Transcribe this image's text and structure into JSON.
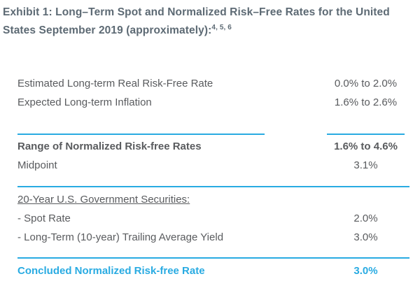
{
  "title": {
    "line1": "Exhibit 1: Long–Term Spot and Normalized Risk–Free Rates for the United",
    "line2": "States September 2019 (approximately):",
    "footnote_refs": "4, 5, 6"
  },
  "colors": {
    "accent": "#29abe2",
    "title_text": "#5d6a74",
    "body_text": "#595b5e"
  },
  "table": {
    "rows": [
      {
        "label": "Estimated Long-term Real Risk-Free Rate",
        "value": "0.0% to 2.0%"
      },
      {
        "label": "Expected Long-term Inflation",
        "value": "1.6% to 2.6%"
      },
      {
        "label": "Range of Normalized Risk-free Rates",
        "value": "1.6% to 4.6%"
      },
      {
        "label": "Midpoint",
        "value": "3.1%"
      },
      {
        "label": "20-Year U.S. Government Securities:",
        "value": ""
      },
      {
        "label": "- Spot Rate",
        "value": "2.0%"
      },
      {
        "label": "- Long-Term (10-year) Trailing Average Yield",
        "value": "3.0%"
      },
      {
        "label": "Concluded Normalized Risk-free Rate",
        "value": "3.0%"
      }
    ]
  }
}
